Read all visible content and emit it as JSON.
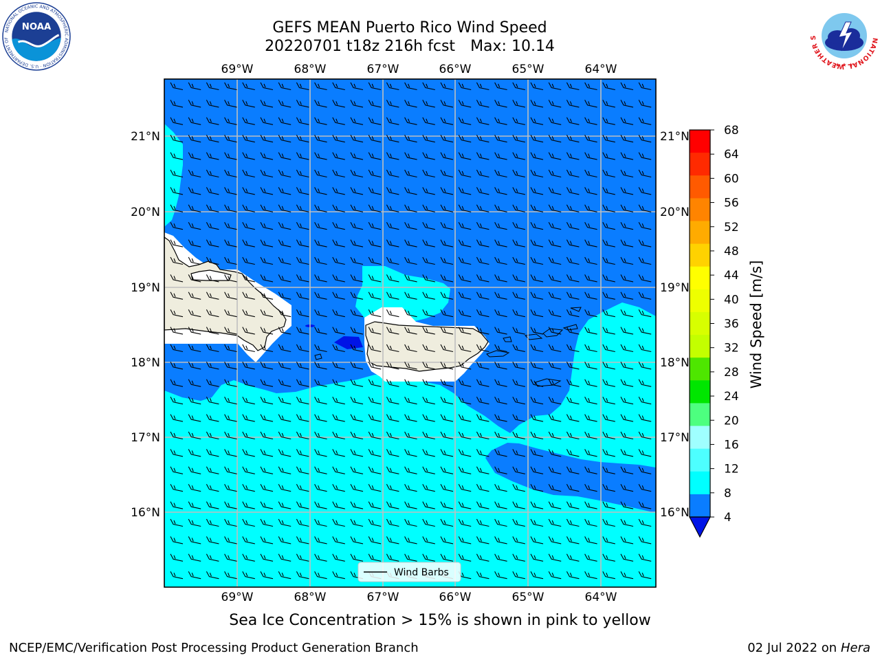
{
  "title": {
    "line1": "GEFS MEAN Puerto Rico Wind Speed",
    "run": "20220701 t18z 216h fcst",
    "max": "Max: 10.14"
  },
  "logos": {
    "left": {
      "name": "noaa-logo",
      "text": "NOAA",
      "ring_text": "NATIONAL OCEANIC AND ATMOSPHERIC ADMINISTRATION · U.S. DEPARTMENT OF COMMERCE"
    },
    "right": {
      "name": "nws-logo",
      "ring_text": "NATIONAL WEATHER SERVICE"
    }
  },
  "map": {
    "lon_labels": [
      "69°W",
      "68°W",
      "67°W",
      "66°W",
      "65°W",
      "64°W"
    ],
    "lat_labels": [
      "21°N",
      "20°N",
      "19°N",
      "18°N",
      "17°N",
      "16°N"
    ],
    "legend_label": "Wind Barbs",
    "colors": {
      "c4_8": "#0a7dff",
      "c8_12": "#00ffff",
      "land": "#efedde",
      "dark": "#0014e6",
      "grid": "#bfbfbf"
    }
  },
  "colorbar": {
    "label": "Wind Speed [m/s]",
    "ticks": [
      "68",
      "64",
      "60",
      "56",
      "52",
      "48",
      "44",
      "40",
      "36",
      "32",
      "28",
      "24",
      "20",
      "16",
      "12",
      "8",
      "4"
    ],
    "colors": [
      "#ff0000",
      "#ff2a00",
      "#ff5a00",
      "#ff8400",
      "#ffab00",
      "#ffd200",
      "#ffff00",
      "#eeff00",
      "#d7ff00",
      "#c3ff00",
      "#4ee600",
      "#00e600",
      "#4dff7f",
      "#9fffff",
      "#4dffff",
      "#00ffff",
      "#0a7dff"
    ],
    "extend_color": "#0014e6"
  },
  "footer": {
    "sea_ice": "Sea Ice Concentration > 15% is shown in pink to yellow",
    "credit": "NCEP/EMC/Verification Post Processing Product Generation Branch",
    "date": "02 Jul 2022 on",
    "machine": "Hera"
  }
}
